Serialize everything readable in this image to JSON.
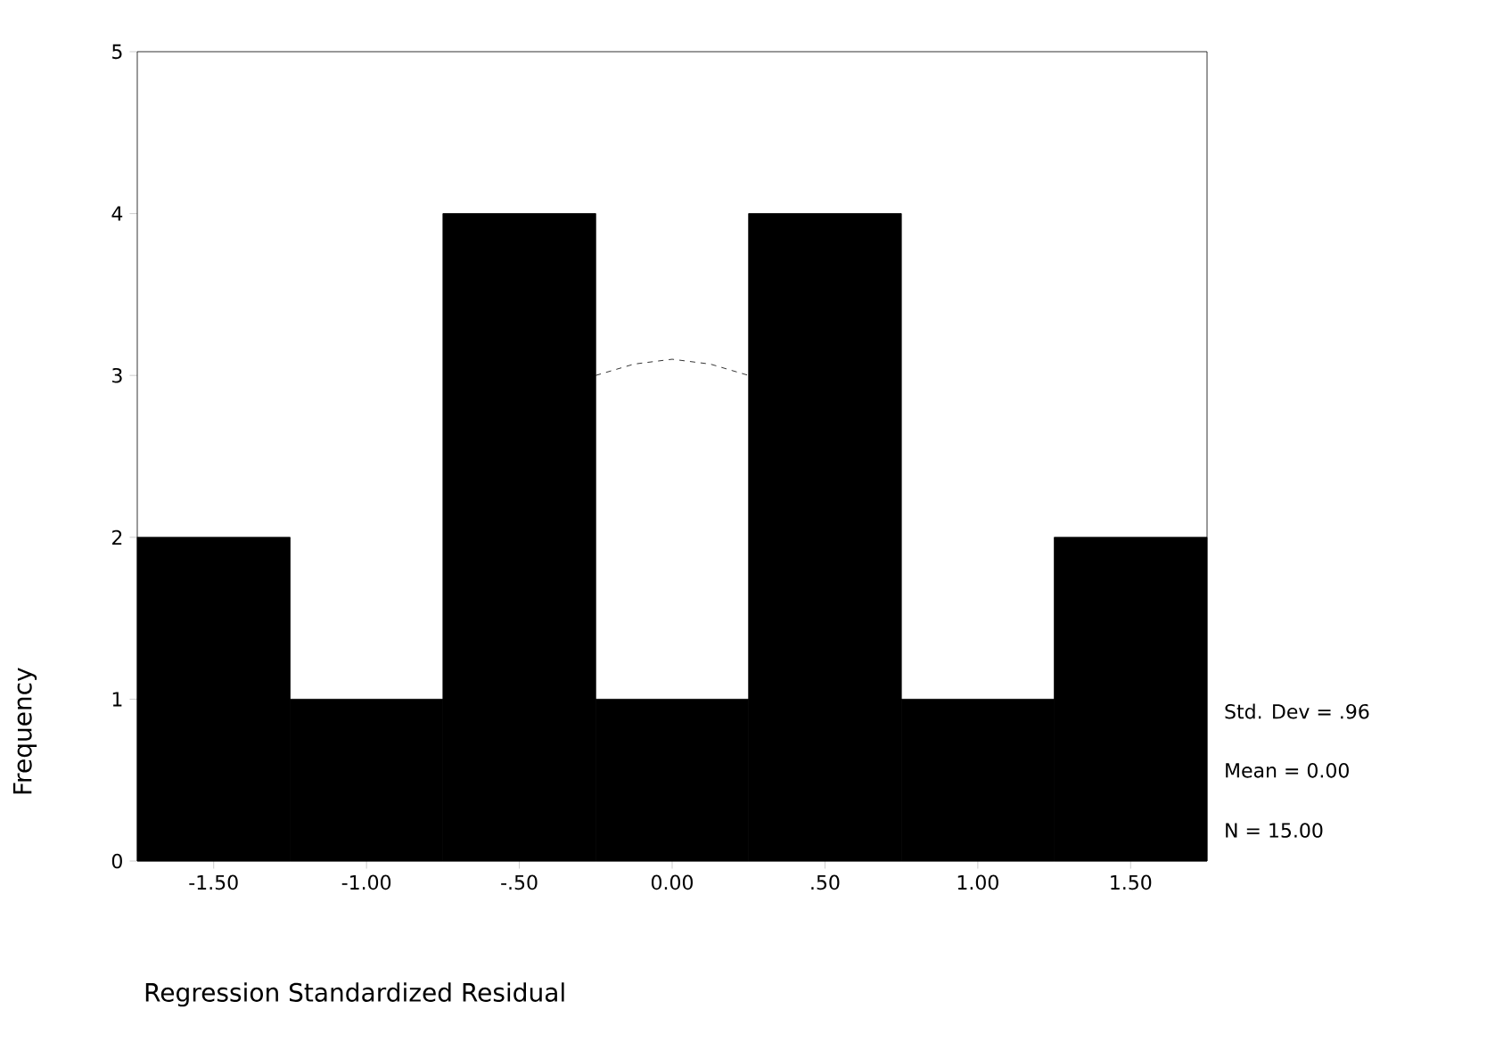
{
  "chart_data": {
    "type": "histogram",
    "xlabel": "Regression Standardized Residual",
    "ylabel": "Frequency",
    "series": [
      {
        "bins": [
          -1.75,
          -1.25,
          -0.75,
          -0.25,
          0.25,
          0.75,
          1.25,
          1.75
        ],
        "values": [
          2,
          1,
          4,
          1,
          4,
          1,
          2
        ],
        "color": "#000000"
      },
      {
        "type": "line",
        "x": [
          -0.25,
          -0.125,
          0,
          0.125,
          0.25
        ],
        "values": [
          3.0,
          3.07,
          3.1,
          3.07,
          3.0
        ],
        "color": "#000000",
        "line_style": "dashed"
      }
    ],
    "xlim": [
      -1.75,
      1.75
    ],
    "ylim": [
      0,
      5
    ],
    "xticks": [
      {
        "value": -1.5,
        "label": "-1.50"
      },
      {
        "value": -1.0,
        "label": "-1.00"
      },
      {
        "value": -0.5,
        "label": "-.50"
      },
      {
        "value": 0,
        "label": "0.00"
      },
      {
        "value": 0.5,
        "label": ".50"
      },
      {
        "value": 1.0,
        "label": "1.00"
      },
      {
        "value": 1.5,
        "label": "1.50"
      }
    ],
    "yticks": [
      0,
      1,
      2,
      3,
      4,
      5
    ],
    "annotations": [
      "Std. Dev = .96",
      "Mean = 0.00",
      "N = 15.00"
    ]
  }
}
